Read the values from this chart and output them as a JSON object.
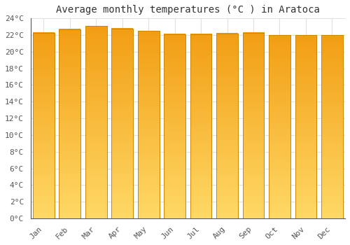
{
  "title": "Average monthly temperatures (°C ) in Aratoca",
  "months": [
    "Jan",
    "Feb",
    "Mar",
    "Apr",
    "May",
    "Jun",
    "Jul",
    "Aug",
    "Sep",
    "Oct",
    "Nov",
    "Dec"
  ],
  "values": [
    22.3,
    22.7,
    23.1,
    22.8,
    22.5,
    22.1,
    22.1,
    22.2,
    22.3,
    22.0,
    22.0,
    22.0
  ],
  "ylim": [
    0,
    24
  ],
  "yticks": [
    0,
    2,
    4,
    6,
    8,
    10,
    12,
    14,
    16,
    18,
    20,
    22,
    24
  ],
  "bar_color_center": "#FFA500",
  "bar_color_edge_dark": "#E08000",
  "bar_gradient_bottom": "#FFD966",
  "bar_gradient_top": "#F0A020",
  "background_color": "#ffffff",
  "grid_color": "#e0e0e0",
  "title_fontsize": 10,
  "tick_fontsize": 8,
  "title_font": "monospace",
  "tick_font": "monospace"
}
